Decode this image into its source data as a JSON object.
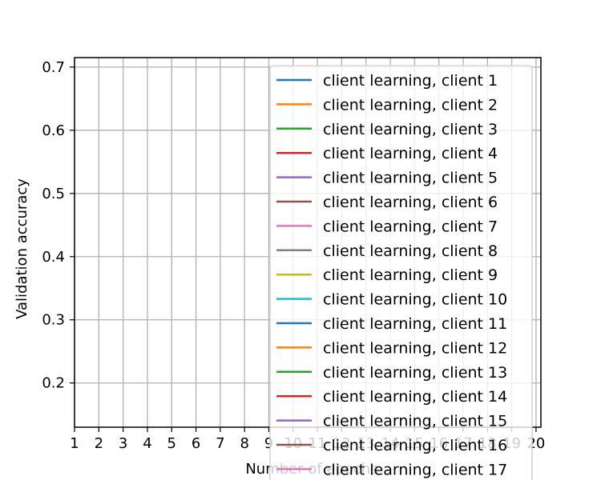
{
  "chart_data": {
    "type": "line",
    "title": "",
    "xlabel": "Number of epochs",
    "ylabel": "Validation accuracy",
    "xlim": [
      1,
      20.2
    ],
    "ylim": [
      0.13,
      0.715
    ],
    "x_ticks": [
      1,
      2,
      3,
      4,
      5,
      6,
      7,
      8,
      9,
      10,
      11,
      12,
      13,
      14,
      15,
      16,
      17,
      18,
      19,
      20
    ],
    "y_ticks": [
      0.2,
      0.3,
      0.4,
      0.5,
      0.6,
      0.7
    ],
    "grid": true,
    "legend_position": "upper right",
    "series": [
      {
        "name": "client learning, client 1",
        "color": "#1f77b4",
        "values": []
      },
      {
        "name": "client learning, client 2",
        "color": "#ff7f0e",
        "values": []
      },
      {
        "name": "client learning, client 3",
        "color": "#2ca02c",
        "values": []
      },
      {
        "name": "client learning, client 4",
        "color": "#d62728",
        "values": []
      },
      {
        "name": "client learning, client 5",
        "color": "#9467bd",
        "values": []
      },
      {
        "name": "client learning, client 6",
        "color": "#8c564b",
        "values": []
      },
      {
        "name": "client learning, client 7",
        "color": "#e377c2",
        "values": []
      },
      {
        "name": "client learning, client 8",
        "color": "#7f7f7f",
        "values": []
      },
      {
        "name": "client learning, client 9",
        "color": "#bcbd22",
        "values": []
      },
      {
        "name": "client learning, client 10",
        "color": "#17becf",
        "values": []
      },
      {
        "name": "client learning, client 11",
        "color": "#1f77b4",
        "values": []
      },
      {
        "name": "client learning, client 12",
        "color": "#ff7f0e",
        "values": []
      },
      {
        "name": "client learning, client 13",
        "color": "#2ca02c",
        "values": []
      },
      {
        "name": "client learning, client 14",
        "color": "#d62728",
        "values": []
      },
      {
        "name": "client learning, client 15",
        "color": "#9467bd",
        "values": []
      },
      {
        "name": "client learning, client 16",
        "color": "#8c564b",
        "values": []
      },
      {
        "name": "client learning, client 17",
        "color": "#e377c2",
        "values": []
      }
    ]
  }
}
